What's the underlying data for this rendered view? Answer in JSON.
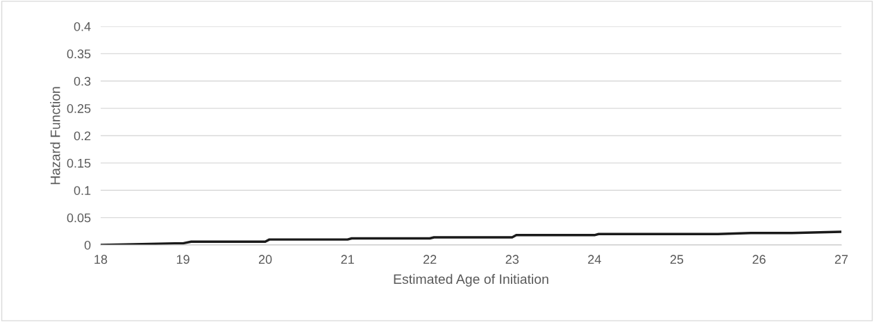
{
  "chart_data": {
    "type": "line",
    "xlabel": "Estimated Age of Initiation",
    "ylabel": "Hazard Function",
    "series": [
      {
        "color": "#1a1a1a",
        "x": [
          18,
          18.9,
          19.0,
          19.1,
          20,
          20.05,
          21,
          21.05,
          22,
          22.05,
          23,
          23.05,
          24,
          24.05,
          25.5,
          25.9,
          26.4,
          27
        ],
        "values": [
          0,
          0.003,
          0.003,
          0.006,
          0.006,
          0.01,
          0.01,
          0.012,
          0.012,
          0.014,
          0.014,
          0.018,
          0.018,
          0.02,
          0.02,
          0.022,
          0.022,
          0.024
        ]
      }
    ],
    "xlim": [
      18,
      27
    ],
    "xticks": [
      18,
      19,
      20,
      21,
      22,
      23,
      24,
      25,
      26,
      27
    ],
    "ylim": [
      0,
      0.4
    ],
    "yticks": [
      0,
      0.05,
      0.1,
      0.15,
      0.2,
      0.25,
      0.3,
      0.35,
      0.4
    ],
    "grid": "y",
    "marker": "none",
    "line_style": "solid"
  }
}
